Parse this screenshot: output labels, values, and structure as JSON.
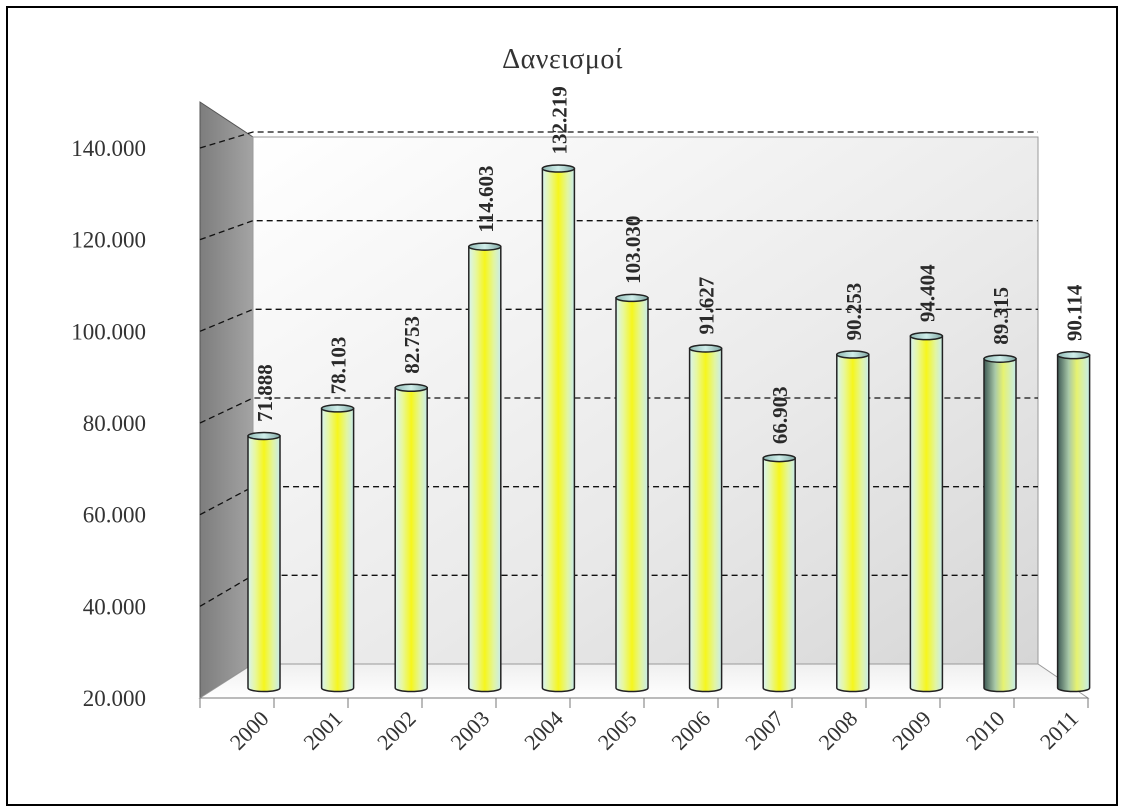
{
  "chart_data": {
    "type": "bar",
    "title": "Δανεισμοί",
    "xlabel": "",
    "ylabel": "",
    "categories": [
      "2000",
      "2001",
      "2002",
      "2003",
      "2004",
      "2005",
      "2006",
      "2007",
      "2008",
      "2009",
      "2010",
      "2011"
    ],
    "values": [
      71888,
      78103,
      82753,
      114603,
      132219,
      103030,
      91627,
      66903,
      90253,
      94404,
      89315,
      90114
    ],
    "data_labels": [
      "71.888",
      "78.103",
      "82.753",
      "114.603",
      "132.219",
      "103.030",
      "91.627",
      "66.903",
      "90.253",
      "94.404",
      "89.315",
      "90.114"
    ],
    "ylim": [
      20000,
      140000
    ],
    "yticks": [
      20000,
      40000,
      60000,
      80000,
      100000,
      120000,
      140000
    ],
    "ytick_labels": [
      "20.000",
      "40.000",
      "60.000",
      "80.000",
      "100.000",
      "120.000",
      "140.000"
    ],
    "grid": true,
    "style": "3d-cylinder",
    "colors": {
      "bar_core": "#f5f51a",
      "bar_edge": "#cfeff0",
      "bar_dark": "#4f6a64",
      "wall": "#8c8c8c",
      "back_wall": "#e6e6e6"
    }
  }
}
